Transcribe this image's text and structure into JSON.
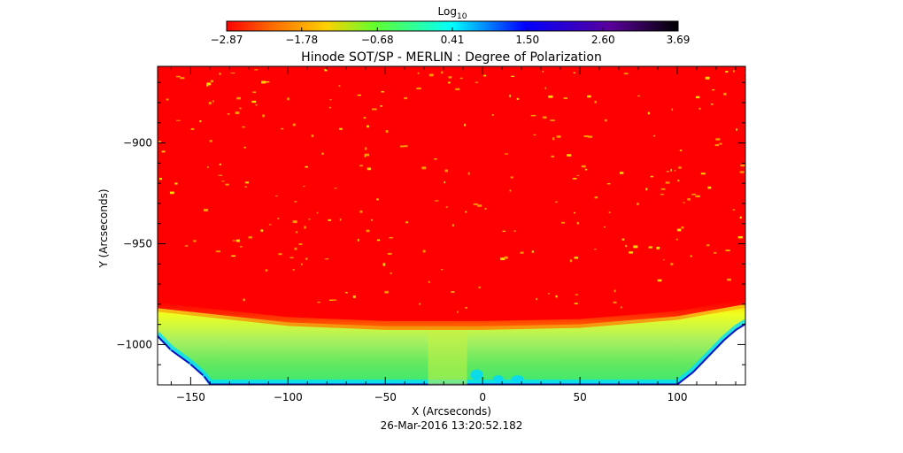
{
  "chart_data": {
    "type": "heatmap",
    "title": "Hinode SOT/SP - MERLIN : Degree of Polarization",
    "xlabel": "X (Arcseconds)",
    "ylabel": "Y (Arcseconds)",
    "timestamp": "26-Mar-2016 13:20:52.182",
    "xlim": [
      -167,
      135
    ],
    "ylim": [
      -1020,
      -862
    ],
    "x_ticks": [
      {
        "value": -150,
        "label": "−150"
      },
      {
        "value": -100,
        "label": "−100"
      },
      {
        "value": -50,
        "label": "−50"
      },
      {
        "value": 0,
        "label": "0"
      },
      {
        "value": 50,
        "label": "50"
      },
      {
        "value": 100,
        "label": "100"
      }
    ],
    "y_ticks": [
      {
        "value": -900,
        "label": "−900"
      },
      {
        "value": -950,
        "label": "−950"
      },
      {
        "value": -1000,
        "label": "−1000"
      }
    ],
    "colorbar": {
      "label_main": "Log",
      "label_sub": "10",
      "vmin": -2.87,
      "vmax": 3.69,
      "ticks": [
        {
          "value": -2.87,
          "label": "−2.87"
        },
        {
          "value": -1.78,
          "label": "−1.78"
        },
        {
          "value": -0.68,
          "label": "−0.68"
        },
        {
          "value": 0.41,
          "label": "0.41"
        },
        {
          "value": 1.5,
          "label": "1.50"
        },
        {
          "value": 2.6,
          "label": "2.60"
        },
        {
          "value": 3.69,
          "label": "3.69"
        }
      ],
      "colors": [
        "#ff0000",
        "#ff8c00",
        "#ffff00",
        "#40ff40",
        "#00ffff",
        "#0000ff",
        "#6000a0",
        "#000000"
      ]
    },
    "limb": {
      "description_values": "solar limb: above is on-disk low polarization, below is off-limb gradient",
      "limb_y_at_x": [
        {
          "x": -167,
          "y": -982
        },
        {
          "x": -100,
          "y": -989
        },
        {
          "x": -50,
          "y": -991
        },
        {
          "x": 0,
          "y": -991
        },
        {
          "x": 50,
          "y": -990
        },
        {
          "x": 100,
          "y": -986
        },
        {
          "x": 135,
          "y": -980
        }
      ]
    }
  }
}
